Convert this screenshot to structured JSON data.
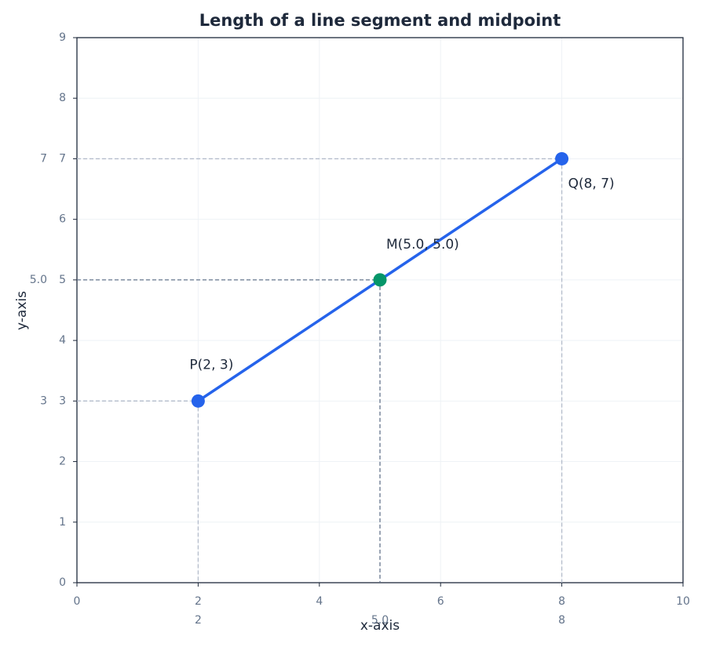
{
  "chart_data": {
    "type": "segment",
    "title": "Length of a line segment and midpoint",
    "x_label": "x-axis",
    "y_label": "y-axis",
    "xlim": [
      0,
      10
    ],
    "ylim": [
      0,
      9
    ],
    "xticks": [
      0,
      2,
      4,
      6,
      8,
      10
    ],
    "yticks": [
      0,
      1,
      2,
      3,
      4,
      5,
      6,
      7,
      8,
      9
    ],
    "grid": true,
    "segment": {
      "x": [
        2,
        8
      ],
      "y": [
        3,
        7
      ],
      "labels": [
        "P(2, 3)",
        "Q(8, 7)"
      ],
      "color": "#2563eb"
    },
    "midpoint": {
      "x": 5,
      "y": 5,
      "label": "M(5.0, 5.0)",
      "color": "#059669"
    },
    "x_guide_ticks": [
      2,
      8,
      {
        "value": 5,
        "label": "5.0"
      }
    ],
    "y_guide_ticks": [
      3,
      7,
      {
        "value": 5,
        "label": "5.0"
      }
    ]
  }
}
